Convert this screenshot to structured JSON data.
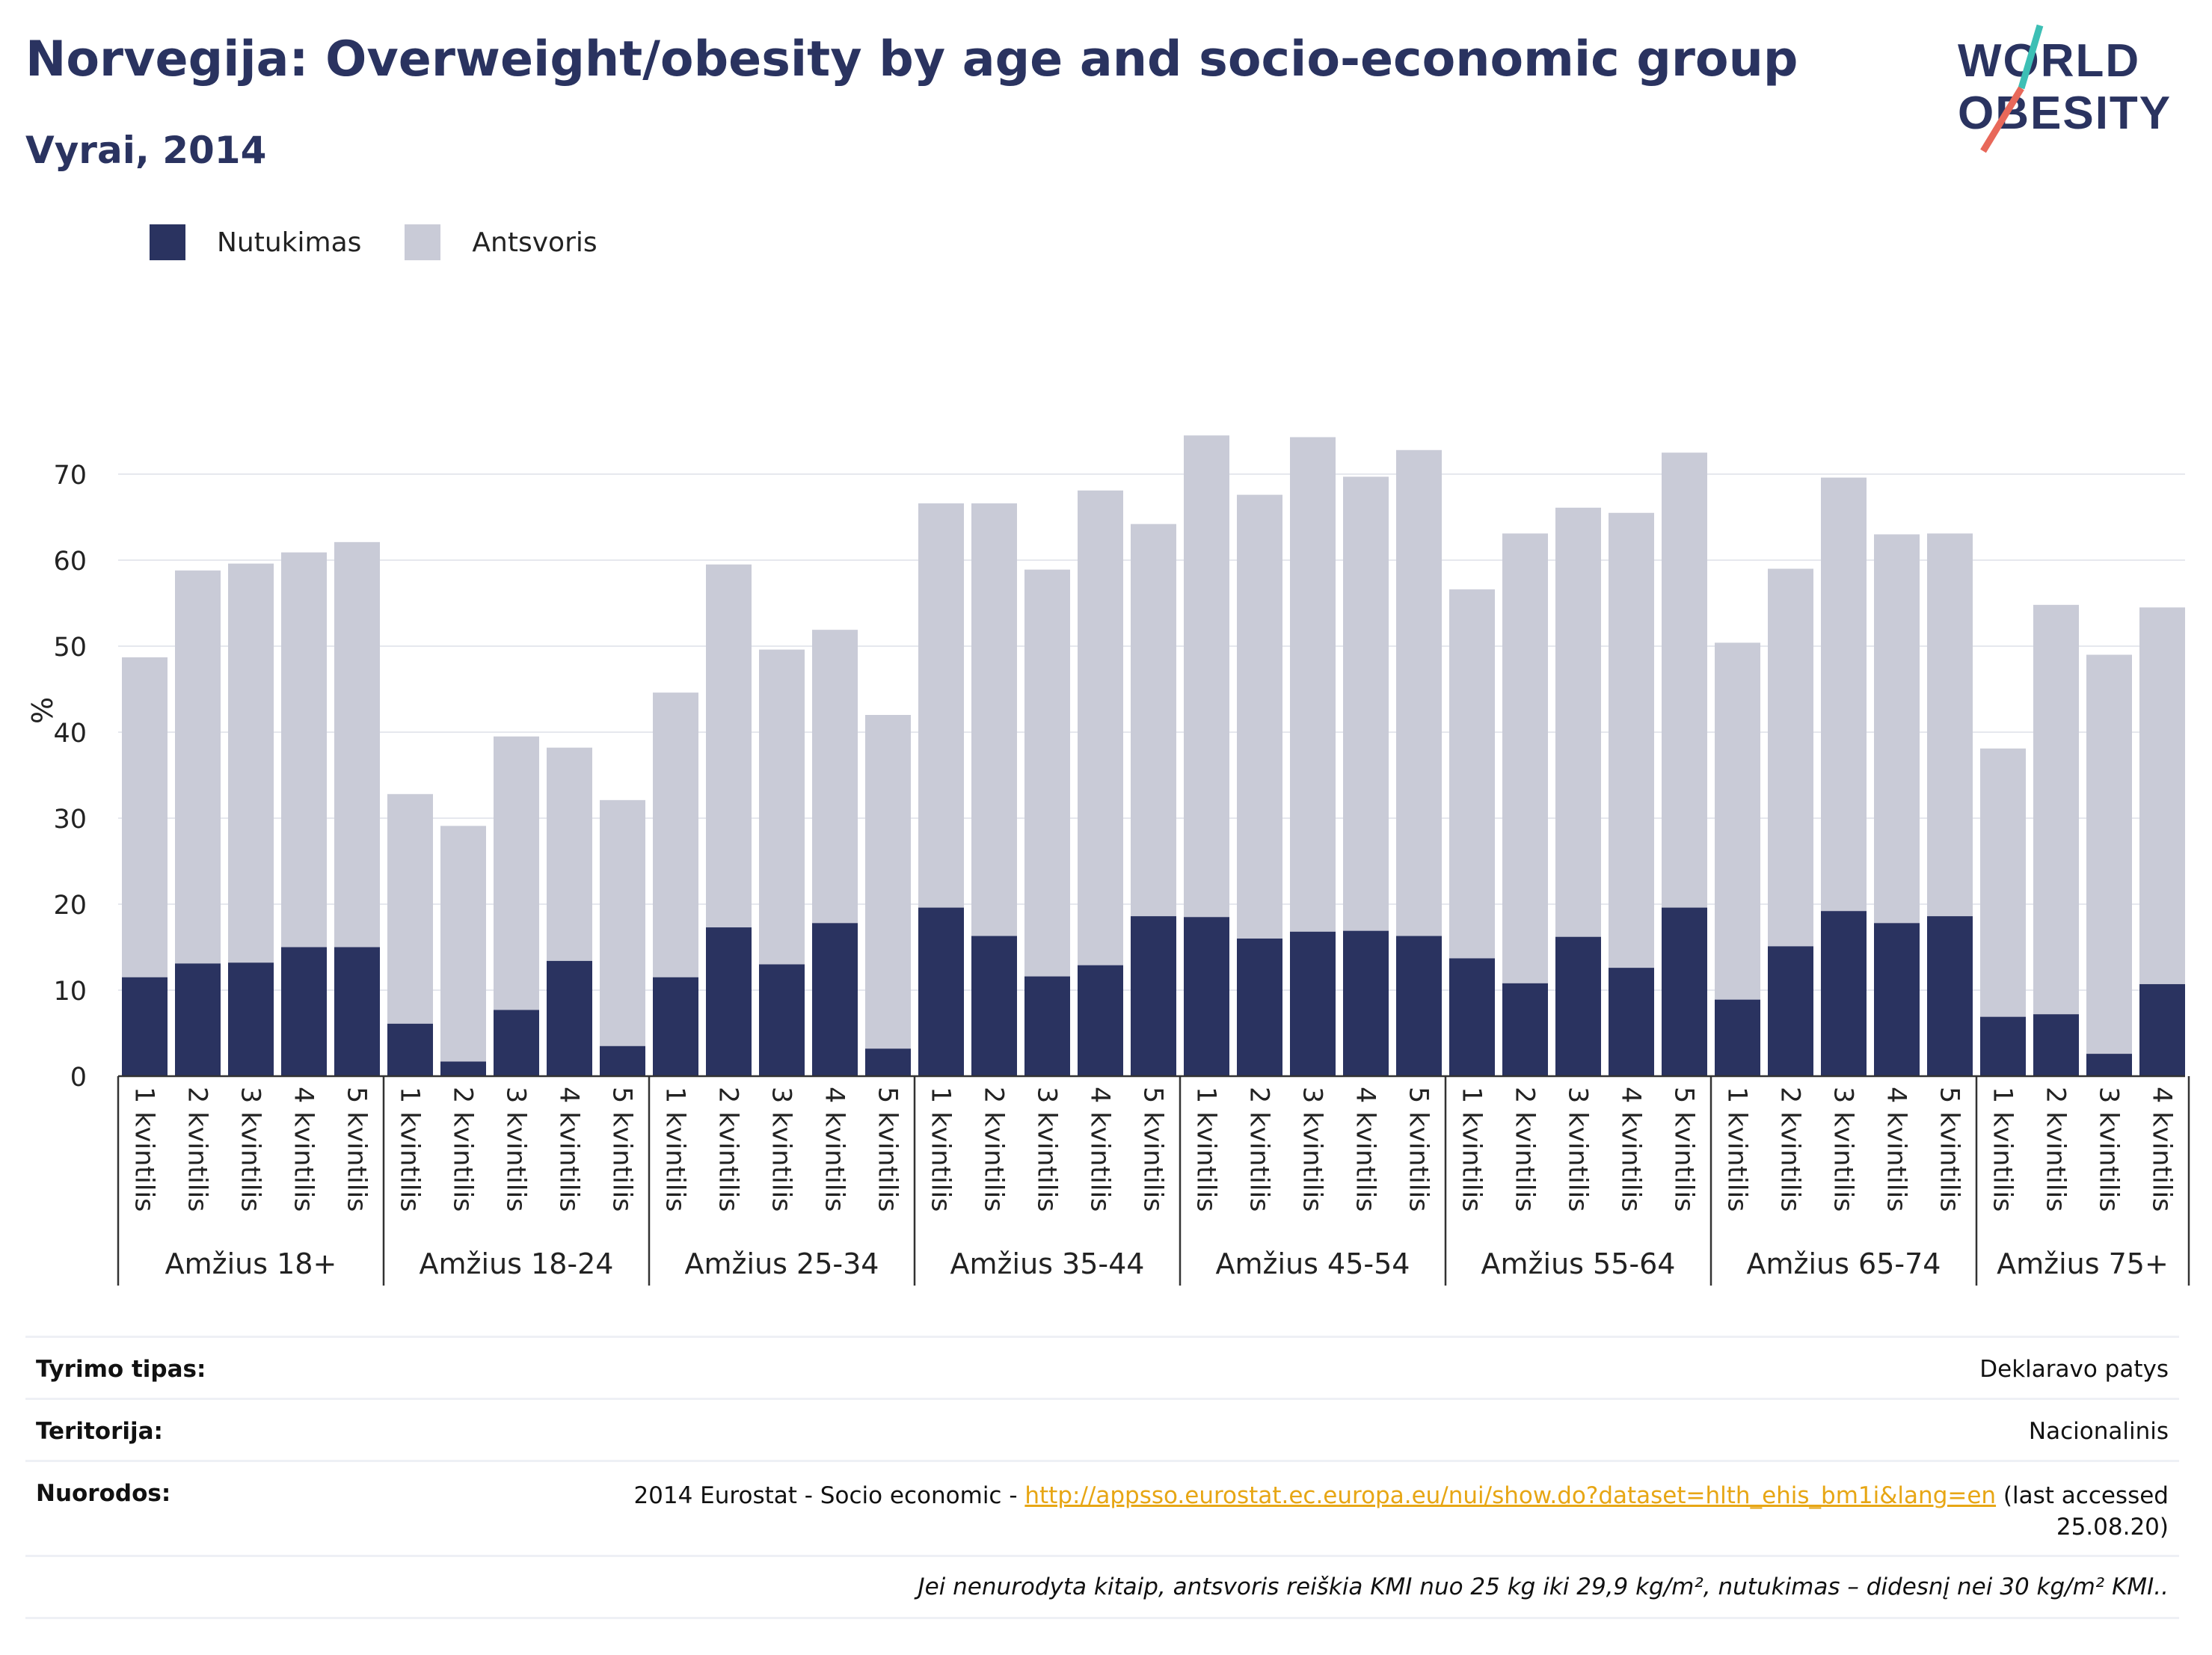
{
  "title": "Norvegija: Overweight/obesity by age and socio-economic group",
  "subtitle": "Vyrai, 2014",
  "logo": {
    "line1": "WORLD",
    "line2": "OBESITY",
    "colors": {
      "text": "#2a3360",
      "slash_top": "#3dbfb5",
      "slash_bottom": "#e8685a"
    }
  },
  "legend": [
    {
      "label": "Nutukimas",
      "color": "#2a3360"
    },
    {
      "label": "Antsvoris",
      "color": "#c9cbd7"
    }
  ],
  "chart_data": {
    "type": "bar",
    "stacked": true,
    "ylabel": "%",
    "ylim": [
      0,
      80
    ],
    "yticks": [
      0,
      10,
      20,
      30,
      40,
      50,
      60,
      70
    ],
    "grid": true,
    "legend_position": "top-left",
    "groups": [
      {
        "label": "Amžius 18+",
        "categories": [
          "1 kvintilis",
          "2 kvintilis",
          "3 kvintilis",
          "4 kvintilis",
          "5 kvintilis"
        ],
        "obesity": [
          11.5,
          13.1,
          13.2,
          15.0,
          15.0
        ],
        "total": [
          48.7,
          58.8,
          59.6,
          60.9,
          62.1
        ]
      },
      {
        "label": "Amžius 18-24",
        "categories": [
          "1 kvintilis",
          "2 kvintilis",
          "3 kvintilis",
          "4 kvintilis",
          "5 kvintilis"
        ],
        "obesity": [
          6.1,
          1.7,
          7.7,
          13.4,
          3.5
        ],
        "total": [
          32.8,
          29.1,
          39.5,
          38.2,
          32.1
        ]
      },
      {
        "label": "Amžius 25-34",
        "categories": [
          "1 kvintilis",
          "2 kvintilis",
          "3 kvintilis",
          "4 kvintilis",
          "5 kvintilis"
        ],
        "obesity": [
          11.5,
          17.3,
          13.0,
          17.8,
          3.2
        ],
        "total": [
          44.6,
          59.5,
          49.6,
          51.9,
          42.0
        ]
      },
      {
        "label": "Amžius 35-44",
        "categories": [
          "1 kvintilis",
          "2 kvintilis",
          "3 kvintilis",
          "4 kvintilis",
          "5 kvintilis"
        ],
        "obesity": [
          19.6,
          16.3,
          11.6,
          12.9,
          18.6
        ],
        "total": [
          66.6,
          66.6,
          58.9,
          68.1,
          64.2
        ]
      },
      {
        "label": "Amžius 45-54",
        "categories": [
          "1 kvintilis",
          "2 kvintilis",
          "3 kvintilis",
          "4 kvintilis",
          "5 kvintilis"
        ],
        "obesity": [
          18.5,
          16.0,
          16.8,
          16.9,
          16.3
        ],
        "total": [
          74.5,
          67.6,
          74.3,
          69.7,
          72.8
        ]
      },
      {
        "label": "Amžius 55-64",
        "categories": [
          "1 kvintilis",
          "2 kvintilis",
          "3 kvintilis",
          "4 kvintilis",
          "5 kvintilis"
        ],
        "obesity": [
          13.7,
          10.8,
          16.2,
          12.6,
          19.6
        ],
        "total": [
          56.6,
          63.1,
          66.1,
          65.5,
          72.5
        ]
      },
      {
        "label": "Amžius 65-74",
        "categories": [
          "1 kvintilis",
          "2 kvintilis",
          "3 kvintilis",
          "4 kvintilis",
          "5 kvintilis"
        ],
        "obesity": [
          8.9,
          15.1,
          19.2,
          17.8,
          18.6
        ],
        "total": [
          50.4,
          59.0,
          69.6,
          63.0,
          63.1
        ]
      },
      {
        "label": "Amžius 75+",
        "categories": [
          "1 kvintilis",
          "2 kvintilis",
          "3 kvintilis",
          "4 kvintilis"
        ],
        "obesity": [
          6.9,
          7.2,
          2.6,
          10.7
        ],
        "total": [
          38.1,
          54.8,
          49.0,
          54.5
        ]
      }
    ]
  },
  "info": {
    "survey_key": "Tyrimo tipas:",
    "survey_val": "Deklaravo patys",
    "territory_key": "Teritorija:",
    "territory_val": "Nacionalinis",
    "refs_key": "Nuorodos:",
    "refs_prefix": "2014 Eurostat - Socio economic - ",
    "refs_link": "http://appsso.eurostat.ec.europa.eu/nui/show.do?dataset=hlth_ehis_bm1i&lang=en",
    "refs_suffix": " (last accessed",
    "refs_date": "25.08.20)",
    "note": "Jei nenurodyta kitaip, antsvoris reiškia KMI nuo 25 kg iki 29,9 kg/m², nutukimas – didesnį nei 30 kg/m² KMI.."
  }
}
